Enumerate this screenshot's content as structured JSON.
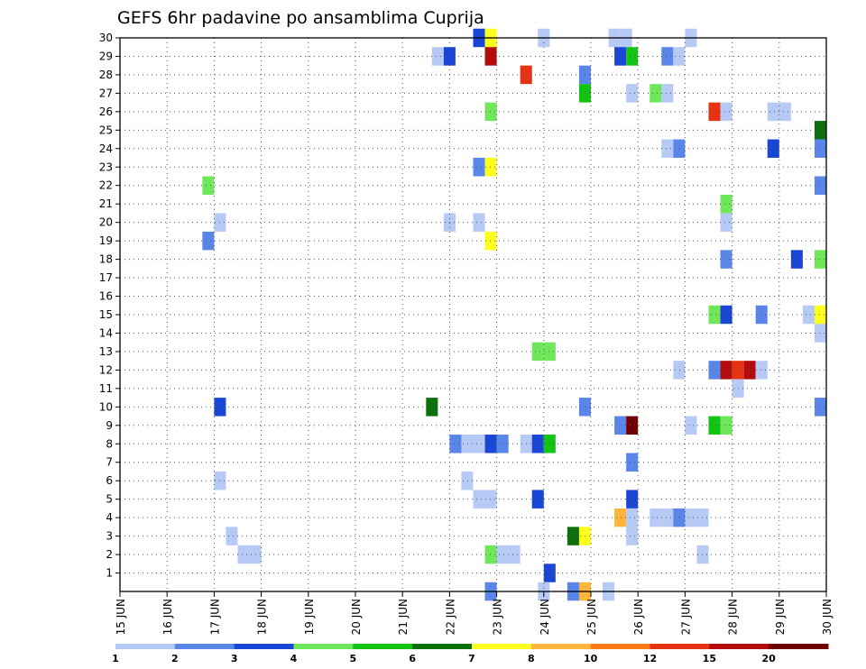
{
  "chart_data": {
    "type": "heatmap",
    "title": "GEFS 6hr padavine po ansamblima Cuprija",
    "xlabel": "",
    "ylabel": "",
    "x_ticks": [
      "15 JUN",
      "16 JUN",
      "17 JUN",
      "18 JUN",
      "19 JUN",
      "20 JUN",
      "21 JUN",
      "22 JUN",
      "23 JUN",
      "24 JUN",
      "25 JUN",
      "26 JUN",
      "27 JUN",
      "28 JUN",
      "29 JUN",
      "30 JUN"
    ],
    "y_ticks": [
      "1",
      "2",
      "3",
      "4",
      "5",
      "6",
      "7",
      "8",
      "9",
      "10",
      "11",
      "12",
      "13",
      "14",
      "15",
      "16",
      "17",
      "18",
      "19",
      "20",
      "21",
      "22",
      "23",
      "24",
      "25",
      "26",
      "27",
      "28",
      "29",
      "30"
    ],
    "xlim_days": [
      15,
      30
    ],
    "ylim_members": [
      0,
      30
    ],
    "grid": true,
    "colorbar": {
      "position": "bottom",
      "colors": [
        "#b7c9f5",
        "#5a86ea",
        "#1a46d6",
        "#6ee85a",
        "#14c414",
        "#0c700c",
        "#ffff1e",
        "#ffb43c",
        "#ff7a14",
        "#e83214",
        "#b40c0c",
        "#700000"
      ],
      "labels": [
        "1",
        "2",
        "3",
        "4",
        "5",
        "6",
        "7",
        "8",
        "10",
        "12",
        "15",
        "20"
      ]
    },
    "cells": [
      {
        "m": 30,
        "d": 22.625,
        "c": 2
      },
      {
        "m": 30,
        "d": 22.875,
        "c": 6
      },
      {
        "m": 30,
        "d": 24.0,
        "c": 0
      },
      {
        "m": 30,
        "d": 25.5,
        "c": 0
      },
      {
        "m": 30,
        "d": 25.75,
        "c": 0
      },
      {
        "m": 30,
        "d": 27.125,
        "c": 0
      },
      {
        "m": 29,
        "d": 21.75,
        "c": 0
      },
      {
        "m": 29,
        "d": 22.0,
        "c": 2
      },
      {
        "m": 29,
        "d": 22.875,
        "c": 10
      },
      {
        "m": 29,
        "d": 25.625,
        "c": 2
      },
      {
        "m": 29,
        "d": 25.875,
        "c": 4
      },
      {
        "m": 29,
        "d": 26.625,
        "c": 1
      },
      {
        "m": 29,
        "d": 26.875,
        "c": 0
      },
      {
        "m": 28,
        "d": 23.625,
        "c": 9
      },
      {
        "m": 28,
        "d": 24.875,
        "c": 1
      },
      {
        "m": 27,
        "d": 24.875,
        "c": 4
      },
      {
        "m": 27,
        "d": 25.875,
        "c": 0
      },
      {
        "m": 27,
        "d": 26.375,
        "c": 3
      },
      {
        "m": 27,
        "d": 26.625,
        "c": 0
      },
      {
        "m": 26,
        "d": 22.875,
        "c": 3
      },
      {
        "m": 26,
        "d": 27.625,
        "c": 9
      },
      {
        "m": 26,
        "d": 27.875,
        "c": 0
      },
      {
        "m": 26,
        "d": 28.875,
        "c": 0
      },
      {
        "m": 26,
        "d": 29.125,
        "c": 0
      },
      {
        "m": 25,
        "d": 29.875,
        "c": 5
      },
      {
        "m": 24,
        "d": 26.625,
        "c": 0
      },
      {
        "m": 24,
        "d": 26.875,
        "c": 1
      },
      {
        "m": 24,
        "d": 28.875,
        "c": 2
      },
      {
        "m": 24,
        "d": 29.875,
        "c": 1
      },
      {
        "m": 23,
        "d": 22.625,
        "c": 1
      },
      {
        "m": 23,
        "d": 22.875,
        "c": 6
      },
      {
        "m": 22,
        "d": 16.875,
        "c": 3
      },
      {
        "m": 22,
        "d": 29.875,
        "c": 1
      },
      {
        "m": 20,
        "d": 17.125,
        "c": 0
      },
      {
        "m": 20,
        "d": 22.0,
        "c": 0
      },
      {
        "m": 20,
        "d": 22.625,
        "c": 0
      },
      {
        "m": 20,
        "d": 27.875,
        "c": 0
      },
      {
        "m": 21,
        "d": 27.875,
        "c": 3
      },
      {
        "m": 19,
        "d": 16.875,
        "c": 1
      },
      {
        "m": 19,
        "d": 22.875,
        "c": 6
      },
      {
        "m": 18,
        "d": 27.875,
        "c": 1
      },
      {
        "m": 18,
        "d": 29.375,
        "c": 2
      },
      {
        "m": 18,
        "d": 29.875,
        "c": 3
      },
      {
        "m": 15,
        "d": 27.625,
        "c": 3
      },
      {
        "m": 15,
        "d": 27.875,
        "c": 2
      },
      {
        "m": 15,
        "d": 28.625,
        "c": 1
      },
      {
        "m": 15,
        "d": 29.625,
        "c": 0
      },
      {
        "m": 15,
        "d": 29.875,
        "c": 6
      },
      {
        "m": 14,
        "d": 29.875,
        "c": 0
      },
      {
        "m": 13,
        "d": 23.875,
        "c": 3
      },
      {
        "m": 13,
        "d": 24.125,
        "c": 3
      },
      {
        "m": 12,
        "d": 26.875,
        "c": 0
      },
      {
        "m": 12,
        "d": 27.625,
        "c": 1
      },
      {
        "m": 12,
        "d": 27.875,
        "c": 10
      },
      {
        "m": 12,
        "d": 28.125,
        "c": 9
      },
      {
        "m": 12,
        "d": 28.375,
        "c": 10
      },
      {
        "m": 12,
        "d": 28.625,
        "c": 0
      },
      {
        "m": 11,
        "d": 28.125,
        "c": 0
      },
      {
        "m": 10,
        "d": 17.125,
        "c": 2
      },
      {
        "m": 10,
        "d": 21.625,
        "c": 5
      },
      {
        "m": 10,
        "d": 24.875,
        "c": 1
      },
      {
        "m": 10,
        "d": 29.875,
        "c": 1
      },
      {
        "m": 9,
        "d": 25.625,
        "c": 1
      },
      {
        "m": 9,
        "d": 25.875,
        "c": 11
      },
      {
        "m": 9,
        "d": 27.125,
        "c": 0
      },
      {
        "m": 9,
        "d": 27.625,
        "c": 4
      },
      {
        "m": 9,
        "d": 27.875,
        "c": 3
      },
      {
        "m": 8,
        "d": 22.125,
        "c": 1
      },
      {
        "m": 8,
        "d": 22.375,
        "c": 0
      },
      {
        "m": 8,
        "d": 22.625,
        "c": 0
      },
      {
        "m": 8,
        "d": 22.875,
        "c": 2
      },
      {
        "m": 8,
        "d": 23.125,
        "c": 1
      },
      {
        "m": 8,
        "d": 23.625,
        "c": 0
      },
      {
        "m": 8,
        "d": 23.875,
        "c": 2
      },
      {
        "m": 8,
        "d": 24.125,
        "c": 4
      },
      {
        "m": 7,
        "d": 25.875,
        "c": 1
      },
      {
        "m": 6,
        "d": 17.125,
        "c": 0
      },
      {
        "m": 6,
        "d": 22.375,
        "c": 0
      },
      {
        "m": 5,
        "d": 22.625,
        "c": 0
      },
      {
        "m": 5,
        "d": 22.875,
        "c": 0
      },
      {
        "m": 5,
        "d": 23.875,
        "c": 2
      },
      {
        "m": 5,
        "d": 25.875,
        "c": 2
      },
      {
        "m": 4,
        "d": 25.625,
        "c": 7
      },
      {
        "m": 4,
        "d": 25.875,
        "c": 0
      },
      {
        "m": 4,
        "d": 26.375,
        "c": 0
      },
      {
        "m": 4,
        "d": 26.625,
        "c": 0
      },
      {
        "m": 4,
        "d": 26.875,
        "c": 1
      },
      {
        "m": 4,
        "d": 27.125,
        "c": 0
      },
      {
        "m": 4,
        "d": 27.375,
        "c": 0
      },
      {
        "m": 3,
        "d": 17.375,
        "c": 0
      },
      {
        "m": 3,
        "d": 24.625,
        "c": 5
      },
      {
        "m": 3,
        "d": 24.875,
        "c": 6
      },
      {
        "m": 3,
        "d": 25.875,
        "c": 0
      },
      {
        "m": 2,
        "d": 17.625,
        "c": 0
      },
      {
        "m": 2,
        "d": 17.875,
        "c": 0
      },
      {
        "m": 2,
        "d": 22.875,
        "c": 3
      },
      {
        "m": 2,
        "d": 23.125,
        "c": 0
      },
      {
        "m": 2,
        "d": 23.375,
        "c": 0
      },
      {
        "m": 2,
        "d": 27.375,
        "c": 0
      },
      {
        "m": 1,
        "d": 24.125,
        "c": 2
      },
      {
        "m": 0,
        "d": 22.875,
        "c": 1
      },
      {
        "m": 0,
        "d": 24.0,
        "c": 0
      },
      {
        "m": 0,
        "d": 24.625,
        "c": 1
      },
      {
        "m": 0,
        "d": 24.875,
        "c": 7
      },
      {
        "m": 0,
        "d": 25.375,
        "c": 0
      }
    ]
  }
}
